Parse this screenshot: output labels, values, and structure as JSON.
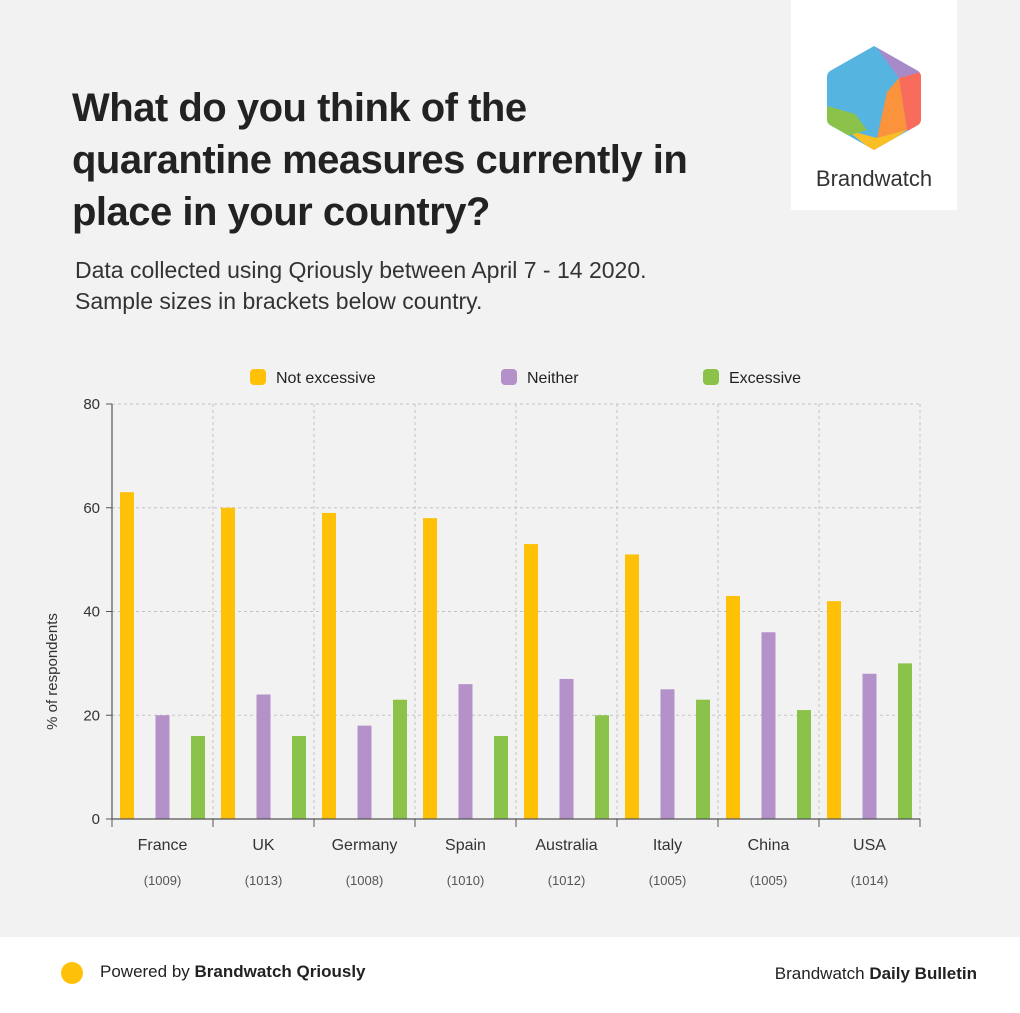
{
  "header": {
    "title": "What do you think of the quarantine measures currently in place in your country?",
    "subtitle_line1": "Data collected using Qriously between April 7 - 14 2020.",
    "subtitle_line2": "Sample sizes in brackets below country."
  },
  "logo": {
    "text": "Brandwatch"
  },
  "footer": {
    "left_prefix": "Powered by",
    "left_brand": "Brandwatch Qriously",
    "right_prefix": "Brandwatch",
    "right_brand": "Daily Bulletin"
  },
  "colors": {
    "not_excessive": "#ffc107",
    "neither": "#b491c8",
    "excessive": "#8bc34a"
  },
  "chart_data": {
    "type": "bar",
    "title": "What do you think of the quarantine measures currently in place in your country?",
    "ylabel": "% of respondents",
    "xlabel": "",
    "ylim": [
      0,
      80
    ],
    "yticks": [
      0,
      20,
      40,
      60,
      80
    ],
    "grid": true,
    "legend_position": "top",
    "categories": [
      "France",
      "UK",
      "Germany",
      "Spain",
      "Australia",
      "Italy",
      "China",
      "USA"
    ],
    "sample_sizes": [
      "(1009)",
      "(1013)",
      "(1008)",
      "(1010)",
      "(1012)",
      "(1005)",
      "(1005)",
      "(1014)"
    ],
    "series": [
      {
        "name": "Not excessive",
        "color": "#ffc107",
        "values": [
          63,
          60,
          59,
          58,
          53,
          51,
          43,
          42
        ]
      },
      {
        "name": "Neither",
        "color": "#b491c8",
        "values": [
          20,
          24,
          18,
          26,
          27,
          25,
          36,
          28
        ]
      },
      {
        "name": "Excessive",
        "color": "#8bc34a",
        "values": [
          16,
          16,
          23,
          16,
          20,
          23,
          21,
          30
        ]
      }
    ]
  }
}
